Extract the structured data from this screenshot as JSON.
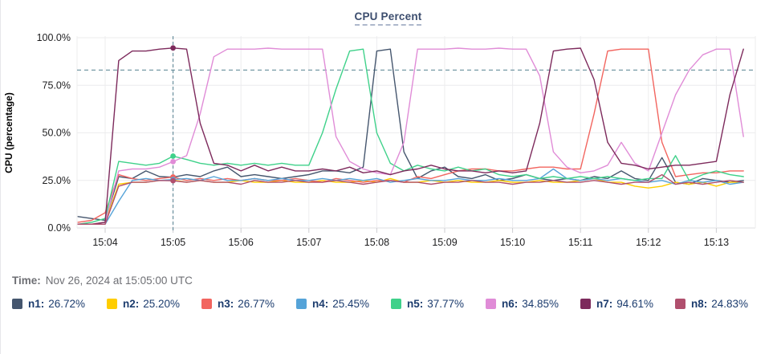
{
  "header": {
    "title": "CPU Percent"
  },
  "hover": {
    "time_label": "Time:",
    "time_value": "Nov 26, 2024 at 15:05:00 UTC"
  },
  "colors": {
    "title": "#3c4d6e",
    "grid": "#ececee",
    "axis": "#dfdfe2",
    "tick_text": "#1d1d1f",
    "dashed_guides": "#54808f",
    "legend_text": "#1c3c6e",
    "hover_text": "#6e6f74"
  },
  "legend": [
    {
      "name": "n1:",
      "value": "26.72%",
      "color": "#45566e"
    },
    {
      "name": "n2:",
      "value": "25.20%",
      "color": "#ffcd00"
    },
    {
      "name": "n3:",
      "value": "26.77%",
      "color": "#f2655f"
    },
    {
      "name": "n4:",
      "value": "25.45%",
      "color": "#55a3d8"
    },
    {
      "name": "n5:",
      "value": "37.77%",
      "color": "#3fd18a"
    },
    {
      "name": "n6:",
      "value": "34.85%",
      "color": "#e08cd7"
    },
    {
      "name": "n7:",
      "value": "94.61%",
      "color": "#7d2a5c"
    },
    {
      "name": "n8:",
      "value": "24.83%",
      "color": "#b04f6d"
    }
  ],
  "chart_data": {
    "type": "line",
    "title": "CPU Percent",
    "xlabel": "",
    "ylabel": "CPU (percentage)",
    "ylim": [
      0,
      100
    ],
    "grid": true,
    "legend_position": "bottom",
    "y_ticks": [
      "100.0%",
      "75.0%",
      "50.0%",
      "25.0%",
      "0.0%"
    ],
    "y_tick_values": [
      100,
      75,
      50,
      25,
      0
    ],
    "x_ticks": [
      "15:04",
      "15:05",
      "15:06",
      "15:07",
      "15:08",
      "15:09",
      "15:10",
      "15:11",
      "15:12",
      "15:13"
    ],
    "x_tick_minutes": [
      4,
      5,
      6,
      7,
      8,
      9,
      10,
      11,
      12,
      13
    ],
    "threshold_value": 83,
    "crosshair_minute": 5.0,
    "crosshair_time": "15:05:00",
    "x_minutes": [
      3.6,
      3.8,
      4.0,
      4.2,
      4.4,
      4.6,
      4.8,
      5.0,
      5.2,
      5.4,
      5.6,
      5.8,
      6.0,
      6.2,
      6.4,
      6.6,
      6.8,
      7.0,
      7.2,
      7.4,
      7.6,
      7.8,
      8.0,
      8.2,
      8.4,
      8.6,
      8.8,
      9.0,
      9.2,
      9.4,
      9.6,
      9.8,
      10.0,
      10.2,
      10.4,
      10.6,
      10.8,
      11.0,
      11.2,
      11.4,
      11.6,
      11.8,
      12.0,
      12.2,
      12.4,
      12.6,
      12.8,
      13.0,
      13.2,
      13.4
    ],
    "series": [
      {
        "name": "n1",
        "color": "#45566e",
        "value_at_crosshair": 26.72,
        "values": [
          6,
          5,
          4,
          27,
          26,
          30,
          27,
          26.72,
          28,
          27,
          30,
          32,
          27,
          28,
          27,
          26,
          27,
          28,
          30,
          30,
          29,
          32,
          93,
          94,
          40,
          26,
          30,
          32,
          27,
          26,
          28,
          25,
          26,
          28,
          26,
          25,
          26,
          25,
          27,
          26,
          30,
          26,
          25,
          37,
          24,
          23,
          26,
          25,
          24,
          25
        ]
      },
      {
        "name": "n2",
        "color": "#ffcd00",
        "value_at_crosshair": 25.2,
        "values": [
          2,
          2,
          3,
          23,
          24,
          24,
          25,
          25.2,
          24,
          25,
          24,
          24,
          25,
          24,
          24,
          25,
          24,
          24,
          25,
          24,
          24,
          25,
          24,
          26,
          24,
          24,
          25,
          24,
          25,
          24,
          24,
          25,
          24,
          24,
          25,
          24,
          24,
          25,
          26,
          24,
          24,
          22,
          21,
          22,
          24,
          23,
          24,
          22,
          24,
          24
        ]
      },
      {
        "name": "n3",
        "color": "#f2655f",
        "value_at_crosshair": 26.77,
        "values": [
          3,
          4,
          8,
          28,
          26,
          25,
          26,
          26.77,
          25,
          26,
          25,
          26,
          25,
          26,
          25,
          25,
          26,
          25,
          24,
          26,
          25,
          24,
          25,
          25,
          24,
          27,
          26,
          28,
          30,
          31,
          31,
          30,
          30,
          31,
          32,
          32,
          31,
          31,
          60,
          93,
          94,
          94,
          94,
          45,
          27,
          28,
          29,
          29,
          30,
          30
        ]
      },
      {
        "name": "n4",
        "color": "#55a3d8",
        "value_at_crosshair": 25.45,
        "values": [
          2,
          2,
          2,
          14,
          25,
          26,
          25,
          25.45,
          26,
          25,
          27,
          25,
          25,
          26,
          25,
          26,
          25,
          25,
          26,
          25,
          26,
          25,
          26,
          24,
          25,
          26,
          25,
          25,
          26,
          25,
          25,
          26,
          25,
          25,
          26,
          31,
          26,
          25,
          26,
          25,
          26,
          25,
          24,
          25,
          23,
          25,
          24,
          25,
          23,
          24
        ]
      },
      {
        "name": "n5",
        "color": "#3fd18a",
        "value_at_crosshair": 37.77,
        "values": [
          2,
          3,
          5,
          35,
          34,
          33,
          34,
          37.77,
          36,
          34,
          33,
          34,
          33,
          34,
          33,
          34,
          33,
          33,
          50,
          73,
          93,
          94,
          50,
          34,
          30,
          33,
          31,
          30,
          32,
          30,
          31,
          28,
          27,
          28,
          26,
          27,
          26,
          27,
          26,
          27,
          26,
          25,
          26,
          26,
          38,
          25,
          28,
          30,
          28,
          27
        ]
      },
      {
        "name": "n6",
        "color": "#e08cd7",
        "value_at_crosshair": 34.85,
        "values": [
          2,
          2,
          3,
          30,
          31,
          31,
          32,
          34.85,
          38,
          60,
          90,
          94,
          94,
          94,
          94.5,
          94,
          94,
          94,
          94,
          48,
          35,
          31,
          29,
          28,
          45,
          94,
          94,
          94,
          94.5,
          94,
          94,
          94.5,
          94,
          94,
          80,
          40,
          32,
          29,
          30,
          33,
          45,
          34,
          30,
          50,
          70,
          83,
          91,
          94,
          94,
          48
        ]
      },
      {
        "name": "n7",
        "color": "#7d2a5c",
        "value_at_crosshair": 94.61,
        "values": [
          2,
          2,
          3,
          88,
          93,
          93,
          94,
          94.61,
          94,
          55,
          34,
          33,
          30,
          33,
          30,
          32,
          30,
          30,
          31,
          30,
          32,
          29,
          30,
          28,
          30,
          31,
          33,
          31,
          30,
          30,
          29,
          30,
          29,
          30,
          55,
          93,
          94,
          94.5,
          78,
          45,
          34,
          33,
          31,
          32,
          33,
          33,
          34,
          35,
          70,
          94
        ]
      },
      {
        "name": "n8",
        "color": "#b04f6d",
        "value_at_crosshair": 24.83,
        "values": [
          2,
          2,
          2,
          22,
          24,
          24,
          25,
          24.83,
          24,
          25,
          24,
          24,
          23,
          25,
          24,
          24,
          25,
          24,
          24,
          25,
          24,
          23,
          24,
          25,
          24,
          24,
          23,
          24,
          24,
          25,
          24,
          24,
          23,
          24,
          24,
          25,
          24,
          24,
          25,
          24,
          23,
          24,
          24,
          28,
          23,
          24,
          23,
          24,
          25,
          24
        ]
      }
    ]
  }
}
